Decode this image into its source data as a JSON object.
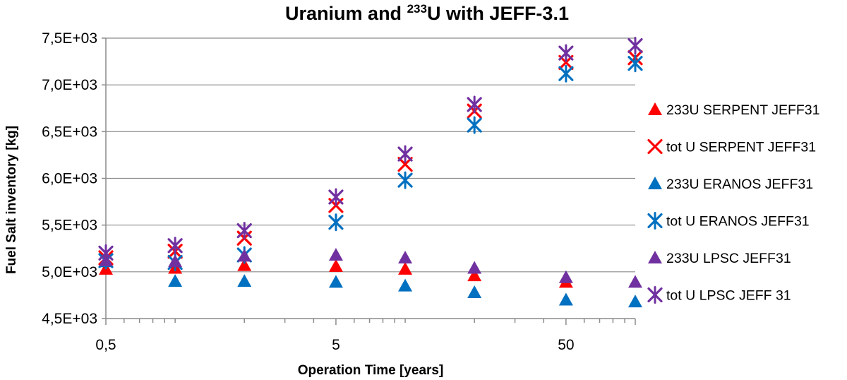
{
  "chart_data": {
    "type": "scatter",
    "title_main": "Uranium and ",
    "title_sup": "233",
    "title_rest": "U with JEFF-3.1",
    "xlabel": "Operation Time [years]",
    "ylabel": "Fuel Salt inventory  [kg]",
    "xscale": "log",
    "xlim": [
      0.5,
      100
    ],
    "ylim": [
      4500,
      7500
    ],
    "xticks": [
      "0,5",
      "5",
      "50"
    ],
    "xtick_values": [
      0.5,
      5,
      50
    ],
    "yticks": [
      "4,5E+03",
      "5,0E+03",
      "5,5E+03",
      "6,0E+03",
      "6,5E+03",
      "7,0E+03",
      "7,5E+03"
    ],
    "ytick_values": [
      4500,
      5000,
      5500,
      6000,
      6500,
      7000,
      7500
    ],
    "grid": "horizontal",
    "legend_position": "right",
    "x": [
      0.5,
      1,
      2,
      5,
      10,
      20,
      50,
      100
    ],
    "series": [
      {
        "name": "233U SERPENT JEFF31",
        "marker": "triangle",
        "color": "#ff0000",
        "values": [
          5030,
          5040,
          5070,
          5060,
          5030,
          4960,
          4890,
          null
        ]
      },
      {
        "name": "tot U SERPENT JEFF31",
        "marker": "x",
        "color": "#ff0000",
        "values": [
          5150,
          5220,
          5360,
          5710,
          6150,
          6720,
          7240,
          7290
        ]
      },
      {
        "name": "233U ERANOS JEFF31",
        "marker": "triangle",
        "color": "#0070c0",
        "values": [
          5110,
          4900,
          4900,
          4890,
          4850,
          4780,
          4700,
          4680
        ]
      },
      {
        "name": "tot U ERANOS JEFF31",
        "marker": "asterisk",
        "color": "#0070c0",
        "values": [
          5120,
          5100,
          5180,
          5530,
          5980,
          6570,
          7120,
          7230
        ]
      },
      {
        "name": "233U LPSC JEFF31",
        "marker": "triangle",
        "color": "#7030a0",
        "values": [
          5120,
          5110,
          5170,
          5180,
          5150,
          5040,
          4940,
          4890
        ]
      },
      {
        "name": "tot U LPSC JEFF 31",
        "marker": "asterisk",
        "color": "#7030a0",
        "values": [
          5200,
          5280,
          5440,
          5800,
          6260,
          6790,
          7340,
          7420
        ]
      }
    ]
  }
}
